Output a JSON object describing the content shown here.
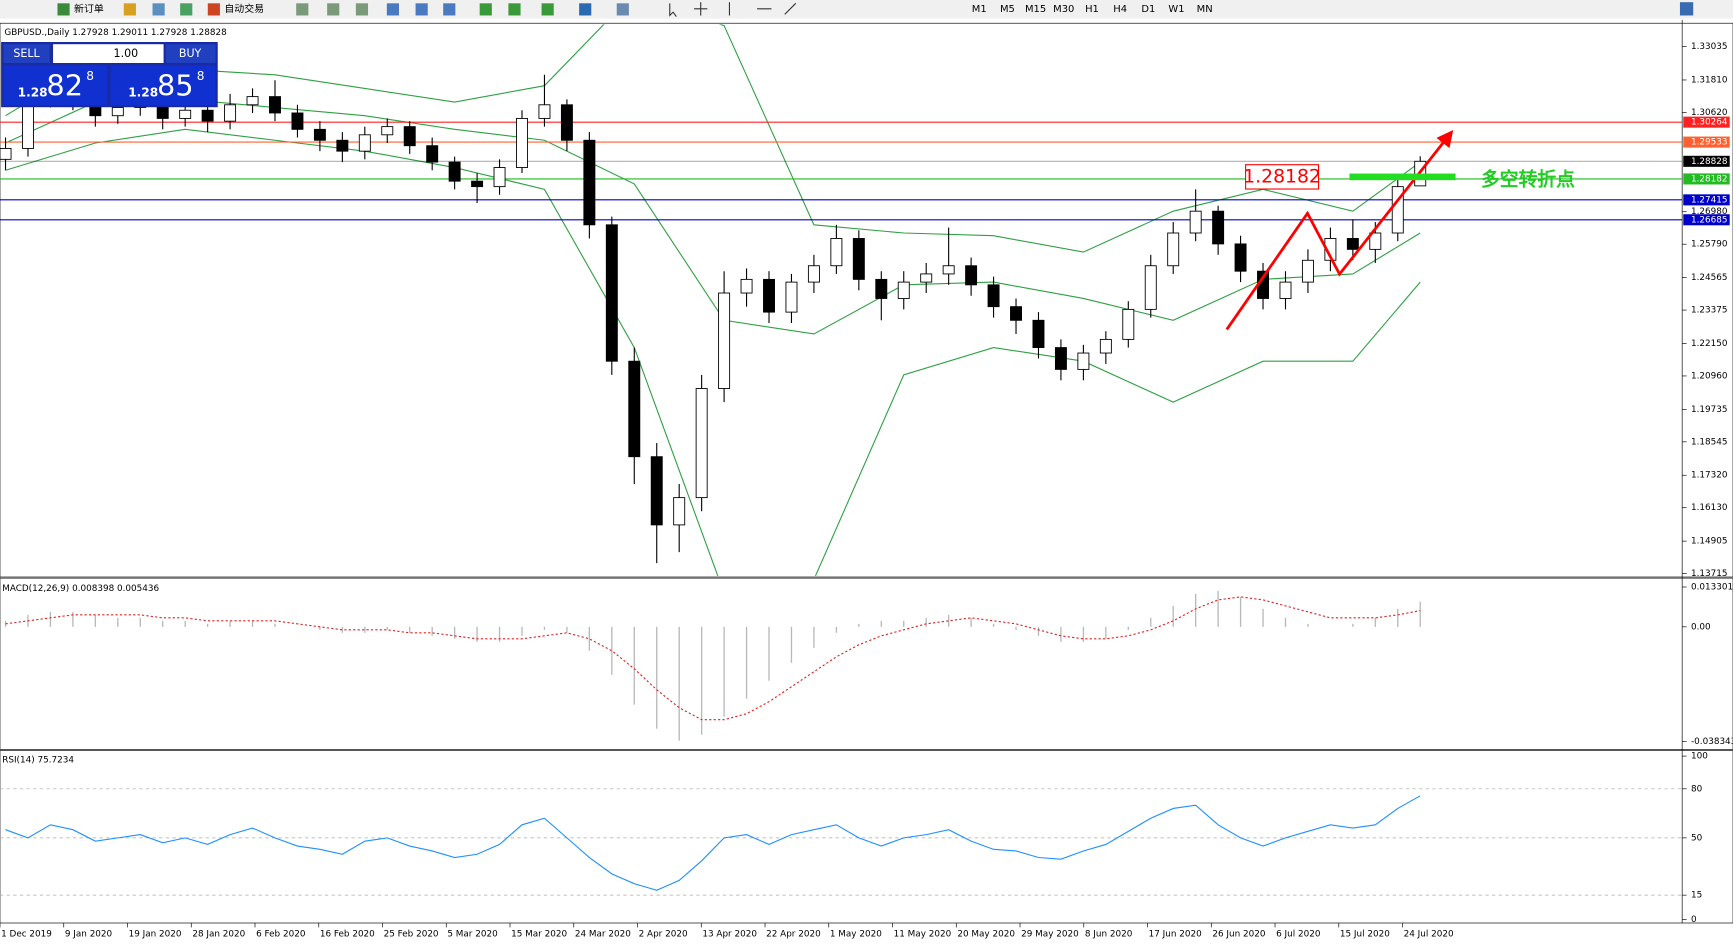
{
  "toolbar": {
    "new_order": "新订单",
    "auto_trading": "自动交易",
    "timeframes": [
      "M1",
      "M5",
      "M15",
      "M30",
      "H1",
      "H4",
      "D1",
      "W1",
      "MN"
    ]
  },
  "one_click": {
    "sell": "SELL",
    "lot": "1.00",
    "buy": "BUY",
    "bid_prefix": "1.28",
    "bid_big": "82",
    "bid_small": "8",
    "ask_prefix": "1.28",
    "ask_big": "85",
    "ask_small": "8"
  },
  "chart_data": [
    {
      "type": "candlestick",
      "title": "GBPUSD.,Daily",
      "x_labels": [
        "1 Dec 2019",
        "9 Jan 2020",
        "19 Jan 2020",
        "28 Jan 2020",
        "6 Feb 2020",
        "16 Feb 2020",
        "25 Feb 2020",
        "5 Mar 2020",
        "15 Mar 2020",
        "24 Mar 2020",
        "2 Apr 2020",
        "13 Apr 2020",
        "22 Apr 2020",
        "1 May 2020",
        "11 May 2020",
        "20 May 2020",
        "29 May 2020",
        "8 Jun 2020",
        "17 Jun 2020",
        "26 Jun 2020",
        "6 Jul 2020",
        "15 Jul 2020",
        "24 Jul 2020"
      ],
      "open": [
        1.289,
        1.293,
        1.312,
        1.315,
        1.311,
        1.305,
        1.308,
        1.31,
        1.304,
        1.307,
        1.303,
        1.309,
        1.312,
        1.306,
        1.3,
        1.296,
        1.292,
        1.298,
        1.301,
        1.294,
        1.288,
        1.281,
        1.279,
        1.286,
        1.304,
        1.309,
        1.296,
        1.265,
        1.215,
        1.18,
        1.155,
        1.165,
        1.205,
        1.24,
        1.245,
        1.233,
        1.244,
        1.25,
        1.26,
        1.245,
        1.238,
        1.244,
        1.247,
        1.25,
        1.243,
        1.235,
        1.23,
        1.22,
        1.212,
        1.218,
        1.223,
        1.234,
        1.25,
        1.262,
        1.27,
        1.258,
        1.248,
        1.238,
        1.244,
        1.252,
        1.26,
        1.256,
        1.262,
        1.27928
      ],
      "high": [
        1.297,
        1.316,
        1.319,
        1.318,
        1.314,
        1.312,
        1.314,
        1.313,
        1.311,
        1.31,
        1.313,
        1.315,
        1.318,
        1.309,
        1.303,
        1.299,
        1.301,
        1.304,
        1.303,
        1.297,
        1.29,
        1.284,
        1.289,
        1.307,
        1.32,
        1.311,
        1.299,
        1.268,
        1.22,
        1.185,
        1.17,
        1.21,
        1.248,
        1.249,
        1.248,
        1.247,
        1.254,
        1.265,
        1.263,
        1.248,
        1.248,
        1.251,
        1.264,
        1.253,
        1.246,
        1.238,
        1.233,
        1.223,
        1.221,
        1.226,
        1.237,
        1.254,
        1.266,
        1.278,
        1.272,
        1.261,
        1.251,
        1.248,
        1.256,
        1.264,
        1.267,
        1.266,
        1.282,
        1.29011
      ],
      "low": [
        1.285,
        1.29,
        1.308,
        1.307,
        1.301,
        1.302,
        1.305,
        1.3,
        1.301,
        1.299,
        1.3,
        1.306,
        1.303,
        1.297,
        1.292,
        1.288,
        1.289,
        1.295,
        1.291,
        1.285,
        1.278,
        1.273,
        1.276,
        1.284,
        1.301,
        1.292,
        1.26,
        1.21,
        1.17,
        1.141,
        1.145,
        1.16,
        1.2,
        1.235,
        1.229,
        1.229,
        1.24,
        1.247,
        1.241,
        1.23,
        1.234,
        1.24,
        1.243,
        1.239,
        1.231,
        1.225,
        1.216,
        1.208,
        1.208,
        1.214,
        1.22,
        1.231,
        1.247,
        1.259,
        1.254,
        1.244,
        1.234,
        1.234,
        1.24,
        1.248,
        1.252,
        1.251,
        1.259,
        1.27928
      ],
      "close": [
        1.293,
        1.312,
        1.315,
        1.311,
        1.305,
        1.308,
        1.31,
        1.304,
        1.307,
        1.303,
        1.309,
        1.312,
        1.306,
        1.3,
        1.296,
        1.292,
        1.298,
        1.301,
        1.294,
        1.288,
        1.281,
        1.279,
        1.286,
        1.304,
        1.309,
        1.296,
        1.265,
        1.215,
        1.18,
        1.155,
        1.165,
        1.205,
        1.24,
        1.245,
        1.233,
        1.244,
        1.25,
        1.26,
        1.245,
        1.238,
        1.244,
        1.247,
        1.25,
        1.243,
        1.235,
        1.23,
        1.22,
        1.212,
        1.218,
        1.223,
        1.234,
        1.25,
        1.262,
        1.27,
        1.258,
        1.248,
        1.238,
        1.244,
        1.252,
        1.26,
        1.256,
        1.262,
        1.279,
        1.28828
      ],
      "bands": {
        "color": "#2ea043",
        "x": [
          0,
          4,
          8,
          12,
          16,
          20,
          24,
          28,
          32,
          36,
          40,
          44,
          48,
          52,
          56,
          60,
          63
        ],
        "upper": [
          1.305,
          1.325,
          1.322,
          1.32,
          1.315,
          1.31,
          1.316,
          1.35,
          1.338,
          1.265,
          1.262,
          1.261,
          1.255,
          1.27,
          1.278,
          1.27,
          1.288
        ],
        "middle": [
          1.295,
          1.31,
          1.311,
          1.308,
          1.305,
          1.3,
          1.296,
          1.28,
          1.23,
          1.225,
          1.243,
          1.244,
          1.238,
          1.23,
          1.245,
          1.247,
          1.262
        ],
        "lower": [
          1.285,
          1.295,
          1.3,
          1.296,
          1.292,
          1.286,
          1.278,
          1.22,
          1.13,
          1.135,
          1.21,
          1.22,
          1.215,
          1.2,
          1.215,
          1.215,
          1.244
        ]
      },
      "levels": [
        {
          "value": 1.30264,
          "color": "#ff2020"
        },
        {
          "value": 1.29533,
          "color": "#ff6030"
        },
        {
          "value": 1.28828,
          "color": "#000000"
        },
        {
          "value": 1.28182,
          "color": "#22bb22"
        },
        {
          "value": 1.27415,
          "color": "#0000cc"
        },
        {
          "value": 1.26685,
          "color": "#0000cc"
        }
      ],
      "ylim": [
        1.1363,
        1.3385
      ],
      "yticks": [
        1.33035,
        {
          "value": 1.3181,
          "label": "1.31810"
        },
        {
          "value": 1.3062,
          "label": "1.30620"
        },
        {
          "value": 1.2698,
          "label": "1.26980"
        },
        {
          "value": 1.2579,
          "label": "1.25790"
        },
        1.24565,
        1.23375,
        {
          "value": 1.2215,
          "label": "1.22150"
        },
        {
          "value": 1.2096,
          "label": "1.20960"
        },
        1.19735,
        1.18545,
        {
          "value": 1.1732,
          "label": "1.17320"
        },
        {
          "value": 1.1613,
          "label": "1.16130"
        },
        1.14905,
        1.13715
      ],
      "annotations": {
        "price_box": "1.28182",
        "note": "多空转折点"
      }
    },
    {
      "type": "macd",
      "title": "MACD(12,26,9)",
      "histogram": [
        0.002,
        0.004,
        0.005,
        0.005,
        0.004,
        0.003,
        0.003,
        0.002,
        0.002,
        0.001,
        0.002,
        0.002,
        0.001,
        0.0,
        -0.001,
        -0.002,
        -0.002,
        -0.001,
        -0.002,
        -0.003,
        -0.004,
        -0.005,
        -0.005,
        -0.003,
        -0.001,
        -0.002,
        -0.008,
        -0.016,
        -0.026,
        -0.034,
        -0.038,
        -0.036,
        -0.03,
        -0.024,
        -0.018,
        -0.012,
        -0.007,
        -0.002,
        0.001,
        0.002,
        0.002,
        0.003,
        0.004,
        0.003,
        0.001,
        -0.001,
        -0.003,
        -0.005,
        -0.005,
        -0.004,
        -0.001,
        0.003,
        0.007,
        0.011,
        0.012,
        0.01,
        0.006,
        0.003,
        0.001,
        0.0,
        0.001,
        0.003,
        0.006,
        0.008398
      ],
      "signal": [
        0.001,
        0.002,
        0.003,
        0.004,
        0.004,
        0.004,
        0.004,
        0.003,
        0.003,
        0.002,
        0.002,
        0.002,
        0.002,
        0.001,
        0.0,
        -0.001,
        -0.001,
        -0.001,
        -0.002,
        -0.002,
        -0.003,
        -0.004,
        -0.004,
        -0.004,
        -0.003,
        -0.002,
        -0.004,
        -0.008,
        -0.014,
        -0.021,
        -0.027,
        -0.031,
        -0.031,
        -0.029,
        -0.025,
        -0.02,
        -0.015,
        -0.01,
        -0.006,
        -0.003,
        -0.001,
        0.001,
        0.002,
        0.003,
        0.002,
        0.001,
        -0.001,
        -0.003,
        -0.004,
        -0.004,
        -0.003,
        -0.001,
        0.002,
        0.006,
        0.009,
        0.01,
        0.009,
        0.007,
        0.005,
        0.003,
        0.003,
        0.003,
        0.004,
        0.005436
      ],
      "histogram_color": "#b8b8b8",
      "signal_color": "#e02020",
      "ylim": [
        -0.0402,
        0.0159
      ],
      "yticks": [
        0.013301,
        {
          "value": 0,
          "label": "0.00"
        },
        -0.038343
      ]
    },
    {
      "type": "line",
      "title": "RSI(14)",
      "color": "#1e90ff",
      "values": [
        55,
        50,
        58,
        55,
        48,
        50,
        52,
        47,
        50,
        46,
        52,
        56,
        50,
        45,
        43,
        40,
        48,
        50,
        45,
        42,
        38,
        40,
        46,
        58,
        62,
        50,
        38,
        28,
        22,
        18,
        24,
        36,
        50,
        52,
        46,
        52,
        55,
        58,
        50,
        45,
        50,
        52,
        55,
        48,
        43,
        42,
        38,
        37,
        42,
        46,
        54,
        62,
        68,
        70,
        58,
        50,
        45,
        50,
        54,
        58,
        56,
        58,
        68,
        75.7234
      ],
      "ylim": [
        0,
        100
      ],
      "yticks": [
        100,
        80,
        50,
        15,
        0
      ]
    }
  ]
}
